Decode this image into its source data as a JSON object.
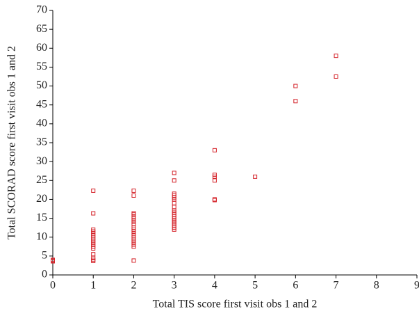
{
  "chart_data": {
    "type": "scatter",
    "x_label": "Total TIS score first visit obs 1 and 2",
    "y_label": "Total SCORAD score first visit obs 1 and 2",
    "color": "#d42027",
    "x": [
      0,
      0,
      0,
      1,
      1,
      1,
      1,
      1,
      1,
      1,
      1,
      1,
      1,
      1,
      1,
      1,
      1,
      1,
      1,
      1,
      2,
      2,
      2,
      2,
      2,
      2,
      2,
      2,
      2,
      2,
      2,
      2,
      2,
      2,
      2,
      2,
      2,
      2,
      2,
      2,
      2,
      3,
      3,
      3,
      3,
      3,
      3,
      3,
      3,
      3,
      3,
      3,
      3,
      3,
      3,
      3,
      3,
      3,
      3,
      3,
      4,
      4,
      4,
      4,
      4,
      4,
      5,
      6,
      6,
      7,
      7
    ],
    "y": [
      3.8,
      3.6,
      4,
      22.3,
      16.3,
      12,
      11.5,
      11,
      10.5,
      10,
      9.5,
      9,
      8.5,
      8,
      7.5,
      7,
      5.5,
      4.5,
      4,
      3.7,
      22.3,
      21,
      16.3,
      16,
      15.5,
      15,
      14.5,
      14,
      13.5,
      12.5,
      12,
      11.5,
      11,
      10.5,
      10,
      9.5,
      9,
      8.5,
      8,
      7.5,
      3.8,
      27,
      25,
      21.5,
      21,
      20.5,
      20,
      19,
      18,
      17,
      16.5,
      16,
      15.5,
      15,
      14.5,
      14,
      13.5,
      13,
      12.5,
      12,
      33,
      26.5,
      26,
      25,
      20,
      19.8,
      26,
      50,
      46,
      58,
      52.5
    ],
    "xlim": [
      0,
      9
    ],
    "xticks": [
      0,
      1,
      2,
      3,
      4,
      5,
      6,
      7,
      8,
      9
    ],
    "ylim": [
      0,
      70
    ],
    "yticks": [
      0,
      5,
      10,
      15,
      20,
      25,
      30,
      35,
      40,
      45,
      50,
      55,
      60,
      65,
      70
    ]
  }
}
